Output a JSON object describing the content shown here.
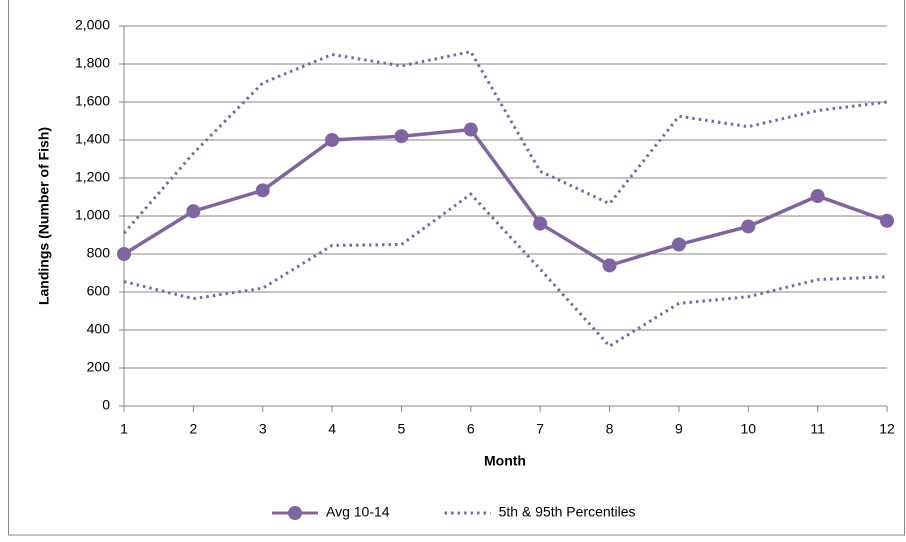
{
  "chart_data": {
    "type": "line",
    "x_label": "Month",
    "y_label": "Landings (Number of Fish)",
    "x": [
      1,
      2,
      3,
      4,
      5,
      6,
      7,
      8,
      9,
      10,
      11,
      12
    ],
    "series": [
      {
        "name": "Avg 10-14",
        "color": "#8064a2",
        "style": "solid",
        "marker": true,
        "values": [
          800,
          1025,
          1135,
          1400,
          1420,
          1455,
          960,
          740,
          850,
          945,
          1105,
          975
        ]
      },
      {
        "name": "5th & 95th Percentiles",
        "color": "#8064a2",
        "style": "dotted",
        "marker": false,
        "values": [
          910,
          1330,
          1700,
          1850,
          1790,
          1865,
          1235,
          1065,
          1525,
          1470,
          1555,
          1600
        ]
      },
      {
        "color": "#8064a2",
        "style": "dotted",
        "marker": false,
        "values": [
          655,
          565,
          620,
          845,
          850,
          1115,
          720,
          315,
          540,
          575,
          665,
          680
        ]
      }
    ],
    "xlim": [
      1,
      12
    ],
    "xticks": [
      1,
      2,
      3,
      4,
      5,
      6,
      7,
      8,
      9,
      10,
      11,
      12
    ],
    "ylim": [
      0,
      2000
    ],
    "yticks": [
      0,
      200,
      400,
      600,
      800,
      {
        "value": 1000,
        "label": "1,000"
      },
      {
        "value": 1200,
        "label": "1,200"
      },
      {
        "value": 1400,
        "label": "1,400"
      },
      {
        "value": 1600,
        "label": "1,600"
      },
      {
        "value": 1800,
        "label": "1,800"
      },
      {
        "value": 2000,
        "label": "2,000"
      }
    ],
    "grid": true,
    "legend": "bottom"
  }
}
